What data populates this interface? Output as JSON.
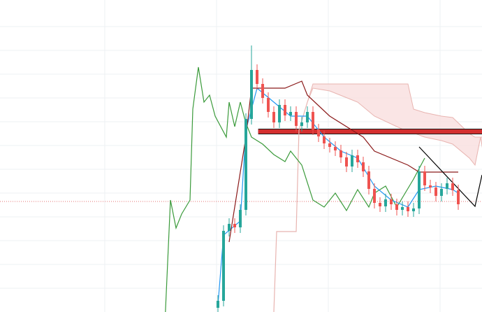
{
  "chart_data": {
    "type": "candlestick",
    "xlim": [
      -39,
      47.25
    ],
    "ylim": [
      0,
      446
    ],
    "up_color": "#26a69a",
    "down_color": "#ef5350",
    "open": [
      6,
      16,
      116,
      126,
      121,
      146,
      276,
      346,
      326,
      306,
      286,
      271,
      296,
      281,
      286,
      266,
      271,
      286,
      261,
      251,
      241,
      236,
      231,
      221,
      208,
      224,
      214,
      201,
      176,
      156,
      151,
      161,
      154,
      146,
      150,
      144,
      148,
      201,
      181,
      178,
      166,
      176,
      184,
      174
    ],
    "high": [
      24,
      124,
      134,
      134,
      154,
      284,
      381,
      354,
      334,
      314,
      294,
      304,
      304,
      294,
      294,
      279,
      294,
      294,
      269,
      259,
      249,
      244,
      239,
      229,
      232,
      232,
      222,
      209,
      184,
      164,
      169,
      169,
      162,
      158,
      158,
      156,
      209,
      209,
      189,
      186,
      184,
      192,
      192,
      182
    ],
    "low": [
      0,
      8,
      108,
      113,
      113,
      138,
      268,
      318,
      298,
      278,
      263,
      263,
      273,
      273,
      258,
      258,
      263,
      253,
      243,
      233,
      228,
      223,
      213,
      200,
      200,
      206,
      193,
      168,
      148,
      143,
      143,
      146,
      138,
      138,
      136,
      136,
      140,
      173,
      170,
      158,
      158,
      168,
      166,
      146
    ],
    "close": [
      16,
      116,
      126,
      121,
      146,
      276,
      346,
      326,
      306,
      286,
      271,
      296,
      281,
      286,
      266,
      271,
      286,
      261,
      251,
      241,
      236,
      231,
      221,
      208,
      224,
      214,
      201,
      176,
      156,
      151,
      161,
      154,
      146,
      150,
      144,
      148,
      201,
      181,
      178,
      166,
      176,
      184,
      174,
      154
    ],
    "cloud": {
      "color": "#f9dede",
      "x": [
        16,
        17,
        20,
        25,
        28,
        32,
        34,
        35,
        37,
        40,
        42,
        45,
        46,
        47,
        48
      ],
      "a": [
        300,
        320,
        316,
        300,
        280,
        265,
        258,
        256,
        250,
        245,
        240,
        220,
        210,
        250,
        200
      ],
      "b": [
        300,
        326,
        326,
        326,
        326,
        326,
        326,
        290,
        285,
        280,
        278,
        255,
        250,
        250,
        250
      ]
    },
    "lines": [
      {
        "color": "#e8b4b0",
        "x": [
          10,
          10.5,
          14,
          14.5,
          16
        ],
        "values": [
          0,
          115,
          115,
          260,
          300
        ]
      },
      {
        "color": "#3a9a3a",
        "x": [
          -9.4,
          -8.5,
          -7.5,
          -6.5,
          -5,
          -4.5,
          -3.5,
          -2.5,
          -1.5,
          -0.5,
          1.5,
          2,
          3,
          4,
          5,
          6,
          8,
          10,
          12,
          13,
          15,
          17,
          19,
          21,
          23,
          25,
          27,
          28,
          30,
          32,
          35,
          37
        ],
        "values": [
          0,
          160,
          120,
          140,
          160,
          290,
          350,
          300,
          310,
          280,
          250,
          300,
          265,
          300,
          270,
          250,
          240,
          225,
          215,
          230,
          210,
          160,
          150,
          170,
          145,
          175,
          150,
          170,
          180,
          150,
          190,
          220
        ]
      },
      {
        "color": "#2196f3",
        "x": [
          0,
          1,
          4,
          5,
          7,
          10,
          13,
          16,
          19,
          22,
          25,
          28,
          31,
          34,
          36,
          39,
          42,
          43
        ],
        "values": [
          10,
          110,
          130,
          260,
          320,
          300,
          280,
          280,
          250,
          230,
          220,
          180,
          160,
          150,
          175,
          180,
          175,
          170
        ]
      },
      {
        "color": "#8b1a1a",
        "x": [
          2,
          5,
          6,
          12,
          15,
          16,
          20,
          26,
          28,
          34,
          36,
          43
        ],
        "values": [
          100,
          250,
          320,
          320,
          330,
          310,
          280,
          250,
          230,
          210,
          200,
          200
        ]
      },
      {
        "color": "#000000",
        "x": [
          36,
          46,
          47.25
        ],
        "values": [
          236,
          151,
          196
        ]
      }
    ],
    "levels": [
      {
        "value": 258,
        "color": "#d32f2f",
        "start": 7.2,
        "width": 6
      },
      {
        "value": 158,
        "color": "#e57373",
        "start": -39,
        "width": 1,
        "dashed": true
      }
    ]
  }
}
